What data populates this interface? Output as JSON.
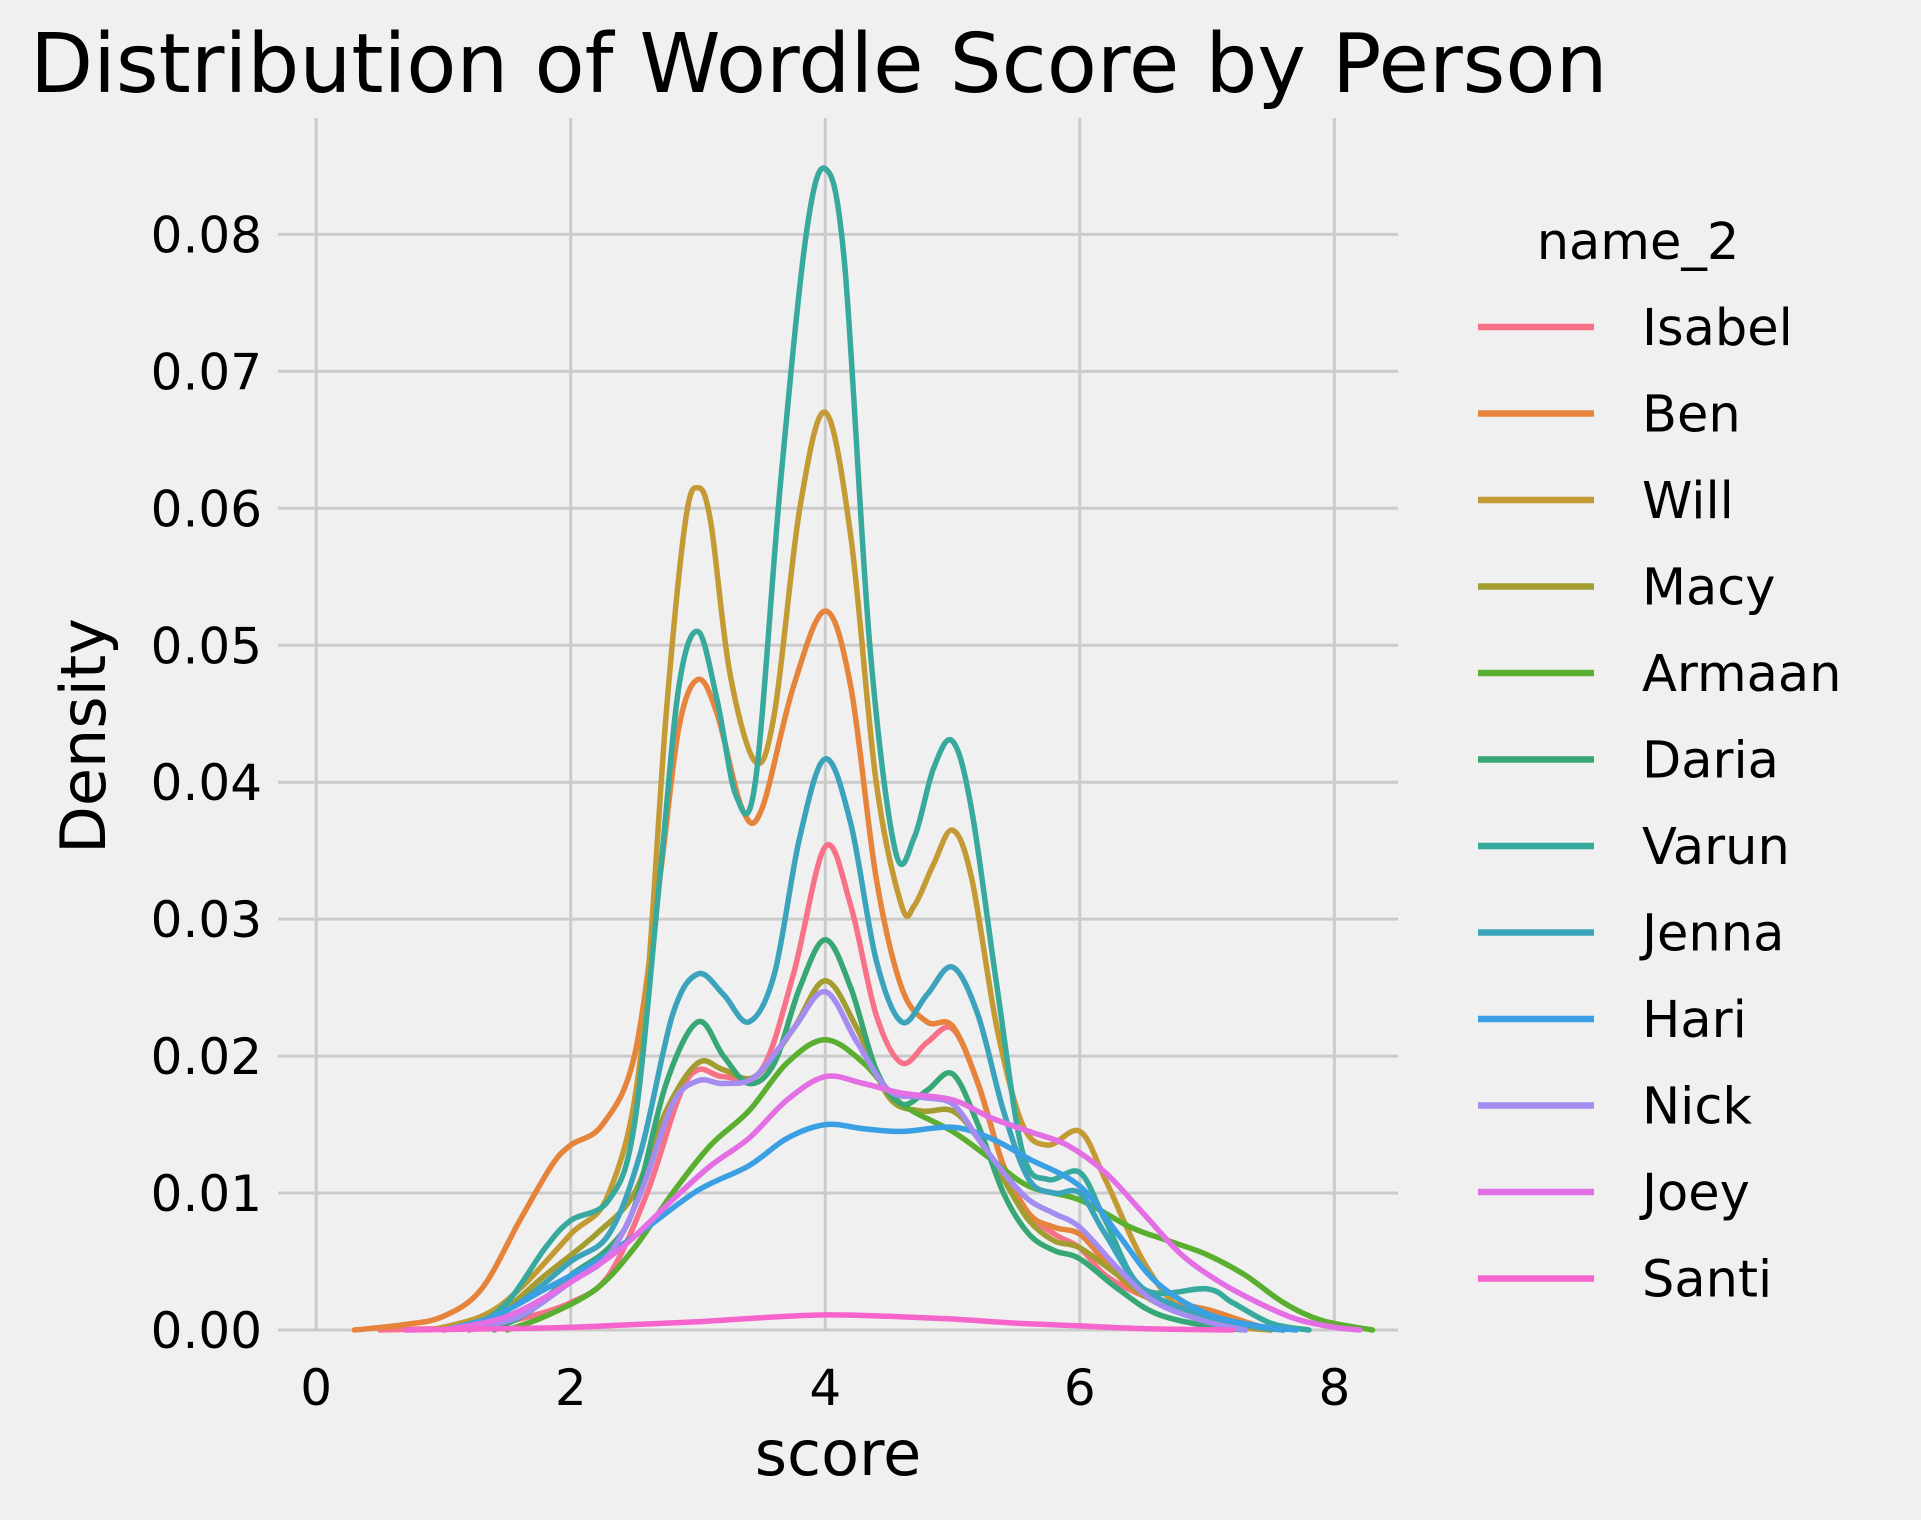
{
  "chart_data": {
    "type": "line",
    "title": "Distribution of Wordle Score by Person",
    "xlabel": "score",
    "ylabel": "Density",
    "xlim": [
      -0.3,
      8.5
    ],
    "ylim": [
      0,
      0.0885
    ],
    "xticks": [
      0,
      2,
      4,
      6,
      8
    ],
    "yticks": [
      0.0,
      0.01,
      0.02,
      0.03,
      0.04,
      0.05,
      0.06,
      0.07,
      0.08
    ],
    "ytick_labels": [
      "0.00",
      "0.01",
      "0.02",
      "0.03",
      "0.04",
      "0.05",
      "0.06",
      "0.07",
      "0.08"
    ],
    "grid": true,
    "legend_title": "name_2",
    "legend_position": "right",
    "series": [
      {
        "name": "Isabel",
        "color": "#f77189",
        "points": [
          [
            0.5,
            0
          ],
          [
            1.2,
            0.0002
          ],
          [
            1.6,
            0.0008
          ],
          [
            2,
            0.002
          ],
          [
            2.3,
            0.004
          ],
          [
            2.6,
            0.01
          ],
          [
            2.85,
            0.017
          ],
          [
            3,
            0.019
          ],
          [
            3.2,
            0.0185
          ],
          [
            3.5,
            0.019
          ],
          [
            3.75,
            0.026
          ],
          [
            4,
            0.0353
          ],
          [
            4.2,
            0.031
          ],
          [
            4.4,
            0.023
          ],
          [
            4.6,
            0.0195
          ],
          [
            4.8,
            0.021
          ],
          [
            5,
            0.022
          ],
          [
            5.2,
            0.018
          ],
          [
            5.4,
            0.012
          ],
          [
            5.6,
            0.0085
          ],
          [
            5.8,
            0.007
          ],
          [
            6,
            0.006
          ],
          [
            6.2,
            0.004
          ],
          [
            6.5,
            0.0025
          ],
          [
            7,
            0.0008
          ],
          [
            7.3,
            0.0002
          ],
          [
            7.5,
            0
          ]
        ]
      },
      {
        "name": "Ben",
        "color": "#e5843a",
        "points": [
          [
            0.3,
            0
          ],
          [
            0.7,
            0.0004
          ],
          [
            1,
            0.001
          ],
          [
            1.3,
            0.003
          ],
          [
            1.6,
            0.008
          ],
          [
            1.85,
            0.012
          ],
          [
            2,
            0.0135
          ],
          [
            2.25,
            0.015
          ],
          [
            2.5,
            0.02
          ],
          [
            2.7,
            0.033
          ],
          [
            2.85,
            0.044
          ],
          [
            3,
            0.0475
          ],
          [
            3.15,
            0.045
          ],
          [
            3.35,
            0.038
          ],
          [
            3.5,
            0.038
          ],
          [
            3.75,
            0.047
          ],
          [
            4,
            0.0525
          ],
          [
            4.2,
            0.047
          ],
          [
            4.4,
            0.033
          ],
          [
            4.6,
            0.025
          ],
          [
            4.8,
            0.0225
          ],
          [
            5,
            0.0222
          ],
          [
            5.2,
            0.018
          ],
          [
            5.4,
            0.012
          ],
          [
            5.6,
            0.0085
          ],
          [
            5.8,
            0.0075
          ],
          [
            6,
            0.007
          ],
          [
            6.2,
            0.005
          ],
          [
            6.5,
            0.0025
          ],
          [
            7,
            0.0015
          ],
          [
            7.4,
            0.0003
          ],
          [
            7.6,
            0
          ]
        ]
      },
      {
        "name": "Will",
        "color": "#c39a33",
        "points": [
          [
            0.9,
            0
          ],
          [
            1.3,
            0.001
          ],
          [
            1.6,
            0.003
          ],
          [
            2,
            0.007
          ],
          [
            2.3,
            0.01
          ],
          [
            2.55,
            0.02
          ],
          [
            2.75,
            0.045
          ],
          [
            2.9,
            0.059
          ],
          [
            3,
            0.0615
          ],
          [
            3.1,
            0.059
          ],
          [
            3.25,
            0.048
          ],
          [
            3.45,
            0.0415
          ],
          [
            3.6,
            0.045
          ],
          [
            3.8,
            0.06
          ],
          [
            4,
            0.067
          ],
          [
            4.2,
            0.058
          ],
          [
            4.4,
            0.04
          ],
          [
            4.6,
            0.031
          ],
          [
            4.7,
            0.031
          ],
          [
            4.85,
            0.034
          ],
          [
            5,
            0.0365
          ],
          [
            5.15,
            0.033
          ],
          [
            5.35,
            0.022
          ],
          [
            5.55,
            0.015
          ],
          [
            5.75,
            0.0135
          ],
          [
            6,
            0.0145
          ],
          [
            6.2,
            0.011
          ],
          [
            6.5,
            0.005
          ],
          [
            6.8,
            0.0015
          ],
          [
            7.2,
            0.0003
          ],
          [
            7.5,
            0
          ]
        ]
      },
      {
        "name": "Macy",
        "color": "#a39c31",
        "points": [
          [
            1,
            0
          ],
          [
            1.4,
            0.001
          ],
          [
            1.8,
            0.004
          ],
          [
            2.2,
            0.007
          ],
          [
            2.5,
            0.01
          ],
          [
            2.75,
            0.016
          ],
          [
            3,
            0.0195
          ],
          [
            3.2,
            0.019
          ],
          [
            3.45,
            0.0185
          ],
          [
            3.75,
            0.022
          ],
          [
            4,
            0.0255
          ],
          [
            4.25,
            0.022
          ],
          [
            4.5,
            0.017
          ],
          [
            4.75,
            0.016
          ],
          [
            5,
            0.016
          ],
          [
            5.2,
            0.014
          ],
          [
            5.4,
            0.011
          ],
          [
            5.6,
            0.008
          ],
          [
            5.8,
            0.0065
          ],
          [
            6,
            0.006
          ],
          [
            6.3,
            0.004
          ],
          [
            6.6,
            0.002
          ],
          [
            7,
            0.0008
          ],
          [
            7.5,
            0
          ]
        ]
      },
      {
        "name": "Armaan",
        "color": "#5aae30",
        "points": [
          [
            1.5,
            0
          ],
          [
            1.8,
            0.001
          ],
          [
            2.2,
            0.003
          ],
          [
            2.5,
            0.006
          ],
          [
            2.8,
            0.01
          ],
          [
            3.1,
            0.0135
          ],
          [
            3.4,
            0.016
          ],
          [
            3.7,
            0.0195
          ],
          [
            4,
            0.0212
          ],
          [
            4.3,
            0.0195
          ],
          [
            4.6,
            0.0165
          ],
          [
            5,
            0.0145
          ],
          [
            5.3,
            0.0125
          ],
          [
            5.6,
            0.0105
          ],
          [
            6,
            0.0095
          ],
          [
            6.4,
            0.0075
          ],
          [
            6.7,
            0.0065
          ],
          [
            7,
            0.0055
          ],
          [
            7.3,
            0.004
          ],
          [
            7.6,
            0.002
          ],
          [
            7.9,
            0.0007
          ],
          [
            8.3,
            0
          ]
        ]
      },
      {
        "name": "Daria",
        "color": "#36a775",
        "points": [
          [
            1.4,
            0
          ],
          [
            1.7,
            0.0015
          ],
          [
            2,
            0.004
          ],
          [
            2.3,
            0.006
          ],
          [
            2.5,
            0.009
          ],
          [
            2.75,
            0.018
          ],
          [
            3,
            0.0225
          ],
          [
            3.2,
            0.02
          ],
          [
            3.4,
            0.018
          ],
          [
            3.6,
            0.0195
          ],
          [
            3.8,
            0.025
          ],
          [
            4,
            0.0285
          ],
          [
            4.2,
            0.025
          ],
          [
            4.4,
            0.019
          ],
          [
            4.6,
            0.0165
          ],
          [
            4.8,
            0.0175
          ],
          [
            5,
            0.0187
          ],
          [
            5.2,
            0.015
          ],
          [
            5.4,
            0.01
          ],
          [
            5.6,
            0.007
          ],
          [
            5.8,
            0.0058
          ],
          [
            6,
            0.0052
          ],
          [
            6.3,
            0.003
          ],
          [
            6.6,
            0.0012
          ],
          [
            7,
            0.0003
          ],
          [
            7.3,
            0
          ]
        ]
      },
      {
        "name": "Varun",
        "color": "#38aa9d",
        "points": [
          [
            1.2,
            0
          ],
          [
            1.5,
            0.002
          ],
          [
            1.8,
            0.006
          ],
          [
            2,
            0.008
          ],
          [
            2.3,
            0.0095
          ],
          [
            2.5,
            0.015
          ],
          [
            2.7,
            0.033
          ],
          [
            2.85,
            0.047
          ],
          [
            3,
            0.051
          ],
          [
            3.15,
            0.046
          ],
          [
            3.3,
            0.039
          ],
          [
            3.45,
            0.04
          ],
          [
            3.65,
            0.062
          ],
          [
            3.85,
            0.08
          ],
          [
            4,
            0.0848
          ],
          [
            4.15,
            0.078
          ],
          [
            4.35,
            0.05
          ],
          [
            4.55,
            0.035
          ],
          [
            4.7,
            0.036
          ],
          [
            4.85,
            0.041
          ],
          [
            5,
            0.043
          ],
          [
            5.15,
            0.038
          ],
          [
            5.35,
            0.025
          ],
          [
            5.55,
            0.013
          ],
          [
            5.75,
            0.011
          ],
          [
            6,
            0.0115
          ],
          [
            6.2,
            0.008
          ],
          [
            6.5,
            0.003
          ],
          [
            7,
            0.003
          ],
          [
            7.2,
            0.002
          ],
          [
            7.5,
            0.0005
          ],
          [
            7.8,
            0
          ]
        ]
      },
      {
        "name": "Jenna",
        "color": "#3ba3bc",
        "points": [
          [
            1.2,
            0
          ],
          [
            1.6,
            0.002
          ],
          [
            2,
            0.005
          ],
          [
            2.3,
            0.007
          ],
          [
            2.55,
            0.013
          ],
          [
            2.8,
            0.023
          ],
          [
            3,
            0.026
          ],
          [
            3.2,
            0.0245
          ],
          [
            3.4,
            0.0225
          ],
          [
            3.6,
            0.026
          ],
          [
            3.8,
            0.036
          ],
          [
            4,
            0.0417
          ],
          [
            4.2,
            0.037
          ],
          [
            4.4,
            0.027
          ],
          [
            4.6,
            0.0225
          ],
          [
            4.8,
            0.0245
          ],
          [
            5,
            0.0265
          ],
          [
            5.2,
            0.023
          ],
          [
            5.4,
            0.016
          ],
          [
            5.6,
            0.011
          ],
          [
            5.8,
            0.01
          ],
          [
            6,
            0.01
          ],
          [
            6.2,
            0.007
          ],
          [
            6.5,
            0.003
          ],
          [
            7,
            0.001
          ],
          [
            7.4,
            0.0002
          ],
          [
            7.6,
            0
          ]
        ]
      },
      {
        "name": "Hari",
        "color": "#3ba0e3",
        "points": [
          [
            1,
            0
          ],
          [
            1.4,
            0.001
          ],
          [
            1.8,
            0.003
          ],
          [
            2.2,
            0.005
          ],
          [
            2.6,
            0.0075
          ],
          [
            3,
            0.0102
          ],
          [
            3.4,
            0.012
          ],
          [
            3.7,
            0.014
          ],
          [
            4,
            0.015
          ],
          [
            4.3,
            0.0147
          ],
          [
            4.6,
            0.0145
          ],
          [
            5,
            0.0148
          ],
          [
            5.3,
            0.014
          ],
          [
            5.6,
            0.0125
          ],
          [
            6,
            0.0105
          ],
          [
            6.3,
            0.007
          ],
          [
            6.6,
            0.0035
          ],
          [
            7,
            0.0012
          ],
          [
            7.4,
            0.0003
          ],
          [
            7.7,
            0
          ]
        ]
      },
      {
        "name": "Nick",
        "color": "#a58cf0",
        "points": [
          [
            1.2,
            0
          ],
          [
            1.6,
            0.001
          ],
          [
            2,
            0.0035
          ],
          [
            2.3,
            0.0055
          ],
          [
            2.55,
            0.01
          ],
          [
            2.8,
            0.0165
          ],
          [
            3,
            0.0182
          ],
          [
            3.2,
            0.018
          ],
          [
            3.45,
            0.0185
          ],
          [
            3.75,
            0.022
          ],
          [
            4,
            0.0247
          ],
          [
            4.25,
            0.021
          ],
          [
            4.5,
            0.0175
          ],
          [
            4.75,
            0.017
          ],
          [
            5,
            0.0165
          ],
          [
            5.2,
            0.014
          ],
          [
            5.4,
            0.0115
          ],
          [
            5.6,
            0.0095
          ],
          [
            5.8,
            0.0085
          ],
          [
            6,
            0.0075
          ],
          [
            6.3,
            0.0045
          ],
          [
            6.6,
            0.002
          ],
          [
            7,
            0.0006
          ],
          [
            7.3,
            0
          ]
        ]
      },
      {
        "name": "Joey",
        "color": "#e46ee3",
        "points": [
          [
            1,
            0
          ],
          [
            1.5,
            0.001
          ],
          [
            2,
            0.0035
          ],
          [
            2.4,
            0.006
          ],
          [
            2.8,
            0.0095
          ],
          [
            3.1,
            0.012
          ],
          [
            3.4,
            0.014
          ],
          [
            3.7,
            0.0168
          ],
          [
            4,
            0.0185
          ],
          [
            4.3,
            0.018
          ],
          [
            4.6,
            0.0173
          ],
          [
            5,
            0.0168
          ],
          [
            5.3,
            0.0155
          ],
          [
            5.6,
            0.0145
          ],
          [
            5.9,
            0.0135
          ],
          [
            6.2,
            0.0115
          ],
          [
            6.5,
            0.0085
          ],
          [
            6.8,
            0.0055
          ],
          [
            7.1,
            0.0035
          ],
          [
            7.4,
            0.002
          ],
          [
            7.7,
            0.0008
          ],
          [
            8,
            0.0002
          ],
          [
            8.2,
            0
          ]
        ]
      },
      {
        "name": "Santi",
        "color": "#f565cc",
        "points": [
          [
            0.7,
            0
          ],
          [
            1.5,
            0.0001
          ],
          [
            2,
            0.0002
          ],
          [
            2.5,
            0.0004
          ],
          [
            3,
            0.0006
          ],
          [
            3.5,
            0.0009
          ],
          [
            4,
            0.0011
          ],
          [
            4.5,
            0.001
          ],
          [
            5,
            0.0008
          ],
          [
            5.5,
            0.0005
          ],
          [
            6,
            0.0003
          ],
          [
            6.5,
            0.0001
          ],
          [
            7.2,
            0
          ]
        ]
      }
    ]
  }
}
